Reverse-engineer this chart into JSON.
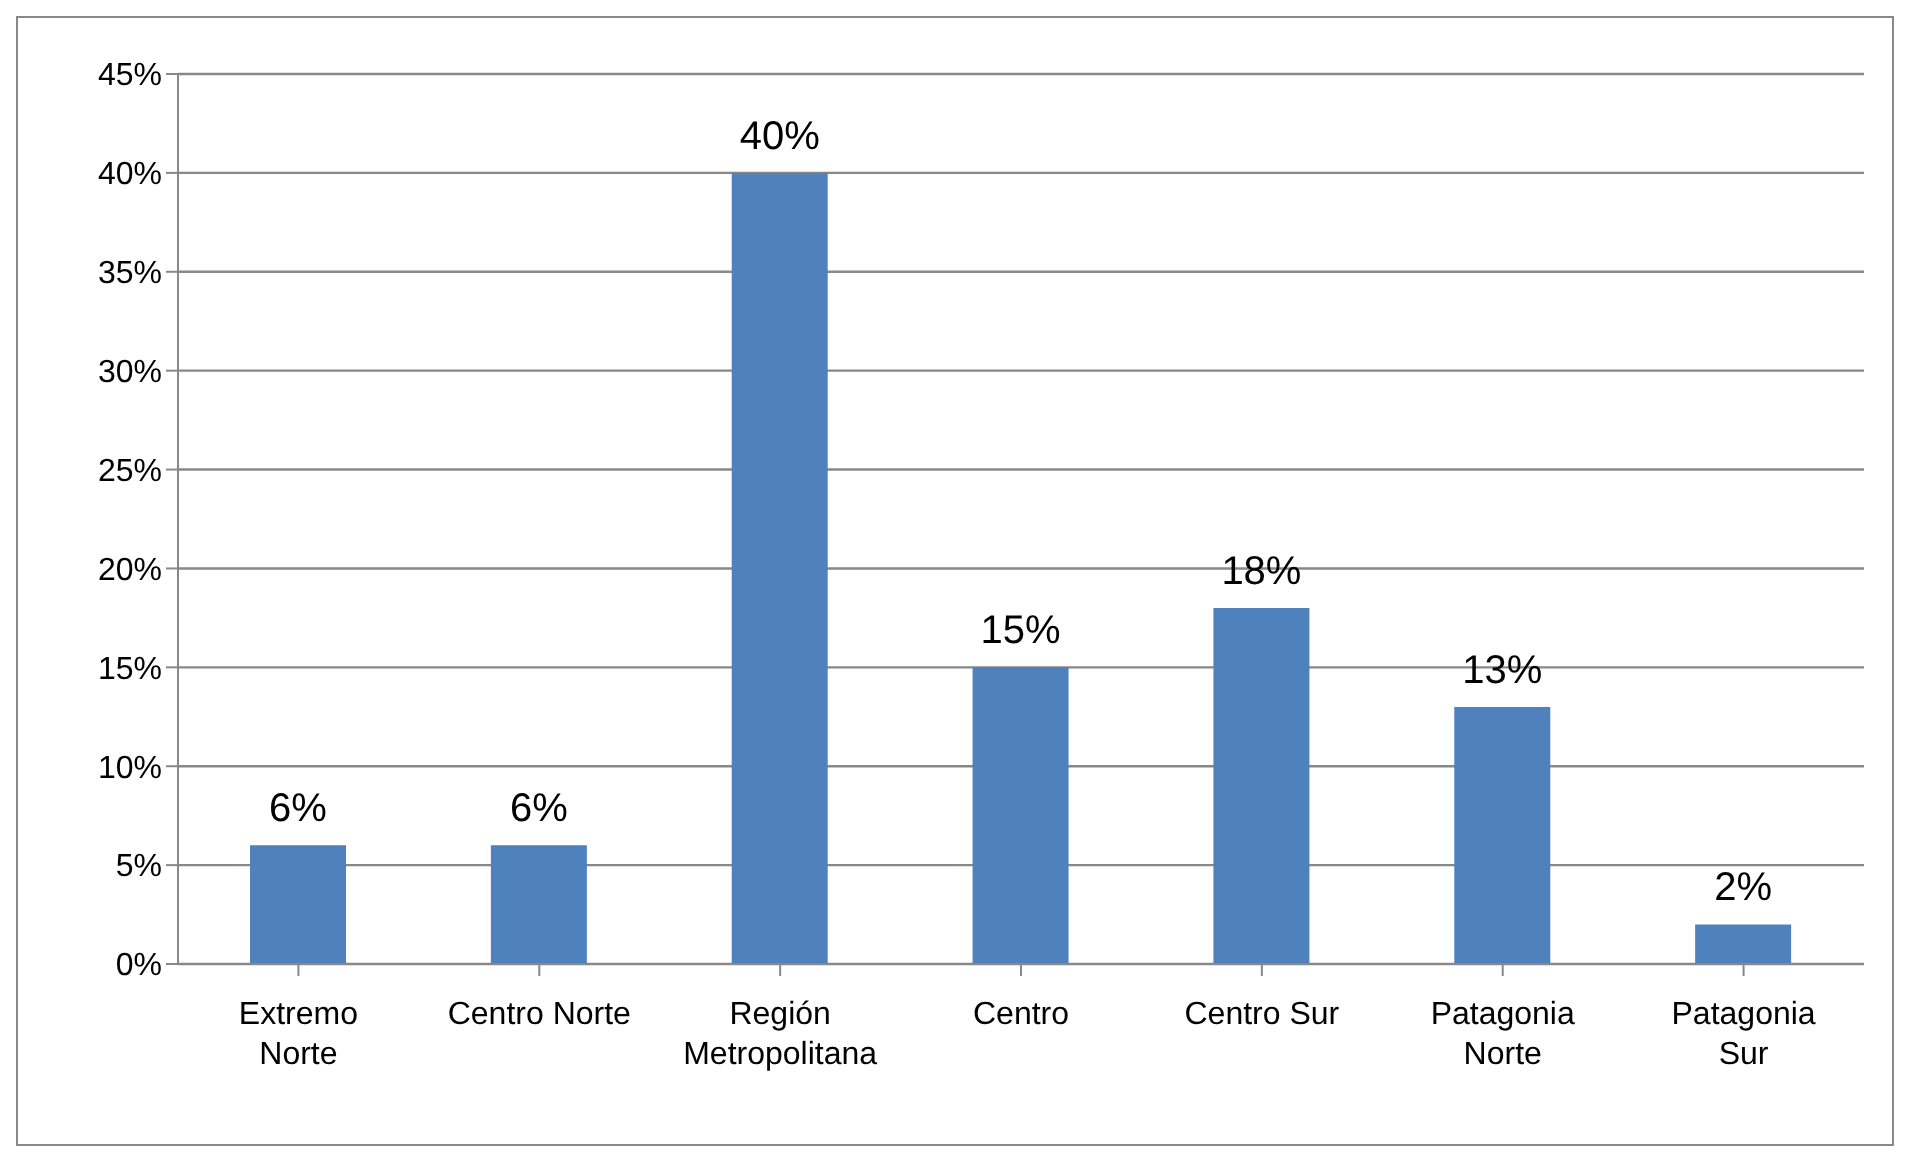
{
  "chart_data": {
    "type": "bar",
    "categories": [
      "Extremo Norte",
      "Centro Norte",
      "Región Metropolitana",
      "Centro",
      "Centro Sur",
      "Patagonia Norte",
      "Patagonia Sur"
    ],
    "values": [
      6,
      6,
      40,
      15,
      18,
      13,
      2
    ],
    "value_labels": [
      "6%",
      "6%",
      "40%",
      "15%",
      "18%",
      "13%",
      "2%"
    ],
    "color": "#4f81bd",
    "ylim": [
      0,
      45
    ],
    "yticks": [
      {
        "value": 0,
        "label": "0%"
      },
      {
        "value": 5,
        "label": "5%"
      },
      {
        "value": 10,
        "label": "10%"
      },
      {
        "value": 15,
        "label": "15%"
      },
      {
        "value": 20,
        "label": "20%"
      },
      {
        "value": 25,
        "label": "25%"
      },
      {
        "value": 30,
        "label": "30%"
      },
      {
        "value": 35,
        "label": "35%"
      },
      {
        "value": 40,
        "label": "40%"
      },
      {
        "value": 45,
        "label": "45%"
      }
    ],
    "grid": "y"
  }
}
